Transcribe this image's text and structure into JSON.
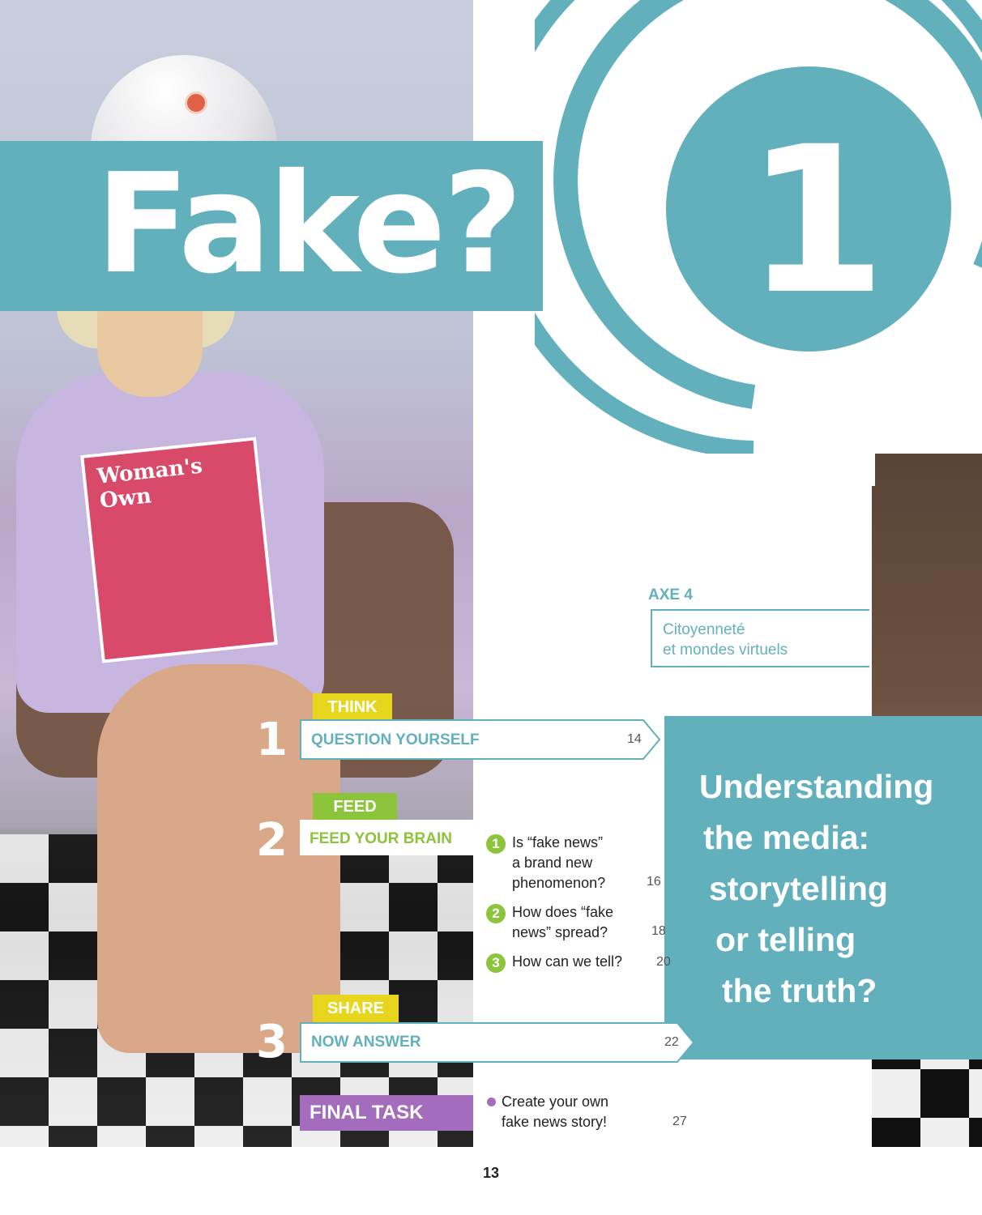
{
  "title": "Fake?",
  "chapter_number": "1",
  "magazine_cover_text": "Woman's Own",
  "axe": {
    "label": "AXE 4",
    "line1": "Citoyenneté",
    "line2": "et mondes virtuels"
  },
  "theme": {
    "lines": [
      "Understanding",
      "the media:",
      "storytelling",
      "or telling",
      "the truth?"
    ]
  },
  "steps": [
    {
      "tag": "THINK",
      "number": "1",
      "label": "QUESTION YOURSELF",
      "page": "14"
    },
    {
      "tag": "FEED",
      "number": "2",
      "label": "FEED YOUR BRAIN"
    },
    {
      "tag": "SHARE",
      "number": "3",
      "label": "NOW ANSWER",
      "page": "22"
    }
  ],
  "feed_items": [
    {
      "num": "1",
      "line1": "Is “fake news”",
      "line2": "a brand new",
      "line3": "phenomenon?",
      "page": "16"
    },
    {
      "num": "2",
      "line1": "How does “fake",
      "line2": "news” spread?",
      "page": "18"
    },
    {
      "num": "3",
      "line1": "How can we tell?",
      "page": "20"
    }
  ],
  "final_task": {
    "label": "FINAL TASK",
    "line1": "Create your own",
    "line2": "fake news story!",
    "page": "27"
  },
  "page_number": "13",
  "colors": {
    "teal": "#63b0bd",
    "yellow": "#e8d51e",
    "green": "#8cc43c",
    "purple": "#a36cbd"
  }
}
